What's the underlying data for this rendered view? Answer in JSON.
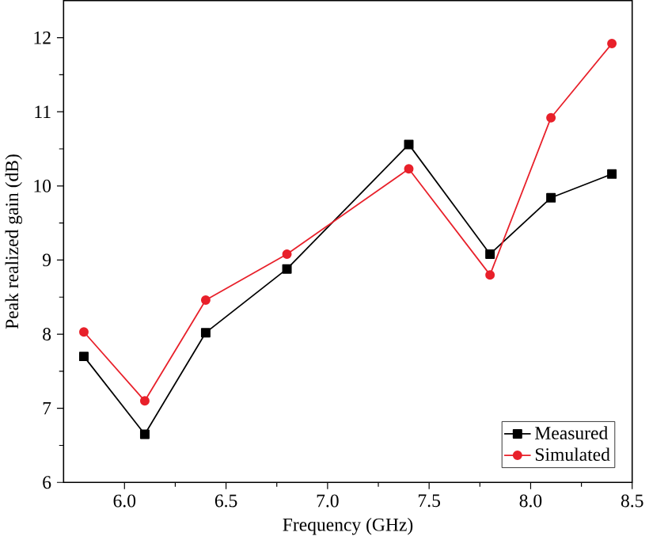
{
  "chart_data": {
    "type": "line",
    "xlabel": "Frequency (GHz)",
    "ylabel": "Peak realized gain (dB)",
    "x": [
      5.8,
      6.1,
      6.4,
      6.8,
      7.4,
      7.8,
      8.1,
      8.4
    ],
    "series": [
      {
        "name": "Measured",
        "color": "#000000",
        "marker": "square",
        "values": [
          7.7,
          6.65,
          8.02,
          8.88,
          10.56,
          9.08,
          9.84,
          10.16
        ]
      },
      {
        "name": "Simulated",
        "color": "#e8202a",
        "marker": "circle",
        "values": [
          8.03,
          7.1,
          8.46,
          9.08,
          10.23,
          8.8,
          10.92,
          11.92
        ]
      }
    ],
    "xlim": [
      5.7,
      8.5
    ],
    "ylim": [
      6,
      12.5
    ],
    "xticks": [
      {
        "value": 6.0,
        "label": "6.0"
      },
      {
        "value": 6.5,
        "label": "6.5"
      },
      {
        "value": 7.0,
        "label": "7.0"
      },
      {
        "value": 7.5,
        "label": "7.5"
      },
      {
        "value": 8.0,
        "label": "8.0"
      },
      {
        "value": 8.5,
        "label": "8.5"
      }
    ],
    "yticks": [
      6,
      7,
      8,
      9,
      10,
      11,
      12
    ],
    "legend": "bottom right",
    "grid": false,
    "line_style": "solid"
  }
}
